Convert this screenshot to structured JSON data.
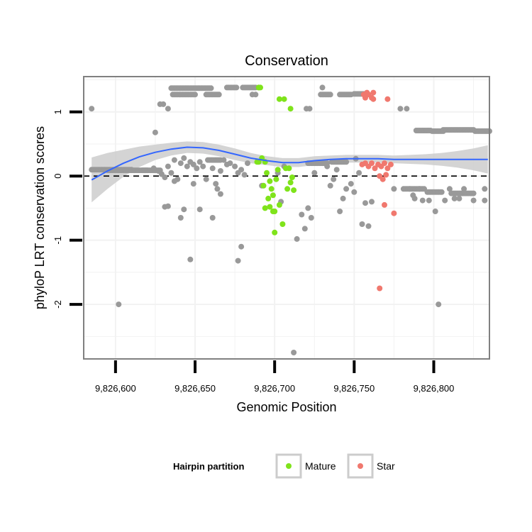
{
  "chart_data": {
    "type": "scatter",
    "title": "Conservation",
    "xlabel": "Genomic Position",
    "ylabel": "phyloP LRT conservation scores",
    "xlim": [
      9826580,
      9826835
    ],
    "ylim": [
      -2.85,
      1.55
    ],
    "x_ticks": [
      {
        "value": 9826600,
        "label": "9,826,600"
      },
      {
        "value": 9826650,
        "label": "9,826,650"
      },
      {
        "value": 9826700,
        "label": "9,826,700"
      },
      {
        "value": 9826750,
        "label": "9,826,750"
      },
      {
        "value": 9826800,
        "label": "9,826,800"
      }
    ],
    "y_ticks": [
      {
        "value": 1,
        "label": "1"
      },
      {
        "value": 0,
        "label": "0"
      },
      {
        "value": -1,
        "label": "-1"
      },
      {
        "value": -2,
        "label": "-2"
      }
    ],
    "grid": true,
    "reference_line": {
      "y": 0,
      "style": "dashed"
    },
    "colors": {
      "other": "#999999",
      "mature": "#7FE31B",
      "star": "#F0786E",
      "smooth": "#3366FF",
      "ribbon": "#CCCCCC",
      "panel_border": "#808080",
      "grid": "#F2F2F2"
    },
    "series": [
      {
        "name": "",
        "category": "other",
        "runs": [
          {
            "x0": 9826585,
            "x1": 9826610,
            "y": 0.1
          },
          {
            "x0": 9826595,
            "x1": 9826620,
            "y": 0.09
          },
          {
            "x0": 9826617,
            "x1": 9826628,
            "y": 0.09
          },
          {
            "x0": 9826636,
            "x1": 9826650,
            "y": 1.27
          },
          {
            "x0": 9826635,
            "x1": 9826660,
            "y": 1.37
          },
          {
            "x0": 9826657,
            "x1": 9826665,
            "y": 1.27
          },
          {
            "x0": 9826670,
            "x1": 9826676,
            "y": 1.38
          },
          {
            "x0": 9826680,
            "x1": 9826688,
            "y": 1.38
          },
          {
            "x0": 9826729,
            "x1": 9826735,
            "y": 1.27
          },
          {
            "x0": 9826741,
            "x1": 9826748,
            "y": 1.27
          },
          {
            "x0": 9826750,
            "x1": 9826757,
            "y": 1.28
          },
          {
            "x0": 9826789,
            "x1": 9826798,
            "y": 0.71
          },
          {
            "x0": 9826799,
            "x1": 9826806,
            "y": 0.7
          },
          {
            "x0": 9826806,
            "x1": 9826825,
            "y": 0.72
          },
          {
            "x0": 9826826,
            "x1": 9826835,
            "y": 0.7
          },
          {
            "x0": 9826658,
            "x1": 9826666,
            "y": 0.25
          },
          {
            "x0": 9826721,
            "x1": 9826733,
            "y": 0.2
          },
          {
            "x0": 9826736,
            "x1": 9826745,
            "y": 0.22
          },
          {
            "x0": 9826781,
            "x1": 9826794,
            "y": -0.2
          },
          {
            "x0": 9826796,
            "x1": 9826805,
            "y": -0.25
          },
          {
            "x0": 9826811,
            "x1": 9826825,
            "y": -0.27
          }
        ],
        "points": [
          [
            9826585,
            1.05
          ],
          [
            9826602,
            -2.0
          ],
          [
            9826625,
            0.68
          ],
          [
            9826628,
            1.12
          ],
          [
            9826630,
            1.12
          ],
          [
            9826633,
            1.05
          ],
          [
            9826624,
            0.12
          ],
          [
            9826627,
            0.08
          ],
          [
            9826629,
            0.03
          ],
          [
            9826631,
            -0.02
          ],
          [
            9826633,
            0.15
          ],
          [
            9826635,
            0.05
          ],
          [
            9826637,
            0.25
          ],
          [
            9826639,
            -0.05
          ],
          [
            9826641,
            0.2
          ],
          [
            9826643,
            0.28
          ],
          [
            9826645,
            0.15
          ],
          [
            9826647,
            0.22
          ],
          [
            9826649,
            0.18
          ],
          [
            9826651,
            0.12
          ],
          [
            9826653,
            0.22
          ],
          [
            9826655,
            0.15
          ],
          [
            9826657,
            -0.05
          ],
          [
            9826661,
            0.12
          ],
          [
            9826663,
            -0.12
          ],
          [
            9826666,
            0.08
          ],
          [
            9826668,
            0.25
          ],
          [
            9826670,
            0.18
          ],
          [
            9826672,
            0.2
          ],
          [
            9826675,
            0.15
          ],
          [
            9826677,
            0.05
          ],
          [
            9826679,
            0.1
          ],
          [
            9826681,
            0.02
          ],
          [
            9826683,
            0.2
          ],
          [
            9826631,
            -0.48
          ],
          [
            9826633,
            -0.47
          ],
          [
            9826637,
            -0.08
          ],
          [
            9826641,
            -0.65
          ],
          [
            9826643,
            -0.52
          ],
          [
            9826647,
            -1.3
          ],
          [
            9826649,
            -0.12
          ],
          [
            9826653,
            -0.52
          ],
          [
            9826661,
            -0.65
          ],
          [
            9826664,
            -0.2
          ],
          [
            9826666,
            -0.28
          ],
          [
            9826677,
            -1.32
          ],
          [
            9826679,
            -1.1
          ],
          [
            9826692,
            -0.15
          ],
          [
            9826690,
            1.38
          ],
          [
            9826686,
            1.27
          ],
          [
            9826688,
            1.27
          ],
          [
            9826706,
            0.15
          ],
          [
            9826702,
            0.05
          ],
          [
            9826704,
            -0.4
          ],
          [
            9826712,
            -2.75
          ],
          [
            9826714,
            -0.98
          ],
          [
            9826717,
            -0.6
          ],
          [
            9826719,
            -0.82
          ],
          [
            9826721,
            -0.5
          ],
          [
            9826723,
            -0.65
          ],
          [
            9826720,
            1.05
          ],
          [
            9826722,
            1.05
          ],
          [
            9826725,
            0.05
          ],
          [
            9826730,
            1.38
          ],
          [
            9826733,
            0.15
          ],
          [
            9826735,
            -0.15
          ],
          [
            9826737,
            -0.05
          ],
          [
            9826739,
            0.1
          ],
          [
            9826741,
            -0.55
          ],
          [
            9826743,
            -0.35
          ],
          [
            9826745,
            -0.2
          ],
          [
            9826748,
            -0.12
          ],
          [
            9826750,
            -0.25
          ],
          [
            9826751,
            0.27
          ],
          [
            9826753,
            0.05
          ],
          [
            9826755,
            -0.75
          ],
          [
            9826757,
            -0.42
          ],
          [
            9826759,
            -0.78
          ],
          [
            9826761,
            -0.4
          ],
          [
            9826775,
            -0.2
          ],
          [
            9826779,
            1.05
          ],
          [
            9826783,
            1.05
          ],
          [
            9826785,
            -0.2
          ],
          [
            9826787,
            -0.3
          ],
          [
            9826788,
            -0.35
          ],
          [
            9826791,
            -0.2
          ],
          [
            9826793,
            -0.38
          ],
          [
            9826797,
            -0.38
          ],
          [
            9826801,
            -0.55
          ],
          [
            9826803,
            -2.0
          ],
          [
            9826807,
            -0.38
          ],
          [
            9826810,
            -0.2
          ],
          [
            9826813,
            -0.35
          ],
          [
            9826816,
            -0.35
          ],
          [
            9826819,
            -0.2
          ],
          [
            9826825,
            -0.38
          ],
          [
            9826832,
            -0.2
          ],
          [
            9826832,
            -0.38
          ]
        ]
      },
      {
        "name": "Mature",
        "category": "mature",
        "points": [
          [
            9826690,
            0.22
          ],
          [
            9826692,
            0.28
          ],
          [
            9826694,
            0.22
          ],
          [
            9826689,
            0.22
          ],
          [
            9826690,
            1.38
          ],
          [
            9826691,
            1.38
          ],
          [
            9826703,
            1.2
          ],
          [
            9826706,
            1.2
          ],
          [
            9826710,
            1.05
          ],
          [
            9826695,
            0.05
          ],
          [
            9826697,
            -0.08
          ],
          [
            9826701,
            -0.05
          ],
          [
            9826693,
            -0.15
          ],
          [
            9826698,
            -0.2
          ],
          [
            9826699,
            -0.3
          ],
          [
            9826696,
            -0.35
          ],
          [
            9826694,
            -0.5
          ],
          [
            9826697,
            -0.48
          ],
          [
            9826699,
            -0.55
          ],
          [
            9826700,
            -0.55
          ],
          [
            9826703,
            -0.45
          ],
          [
            9826705,
            -0.75
          ],
          [
            9826700,
            -0.88
          ],
          [
            9826707,
            0.12
          ],
          [
            9826709,
            0.12
          ],
          [
            9826711,
            -0.02
          ],
          [
            9826710,
            -0.1
          ],
          [
            9826708,
            -0.2
          ],
          [
            9826712,
            -0.22
          ],
          [
            9826702,
            0.1
          ]
        ]
      },
      {
        "name": "Star",
        "category": "star",
        "points": [
          [
            9826756,
            1.27
          ],
          [
            9826758,
            1.3
          ],
          [
            9826759,
            1.27
          ],
          [
            9826761,
            1.22
          ],
          [
            9826762,
            1.3
          ],
          [
            9826757,
            1.22
          ],
          [
            9826762,
            1.2
          ],
          [
            9826771,
            1.2
          ],
          [
            9826755,
            0.18
          ],
          [
            9826757,
            0.2
          ],
          [
            9826759,
            0.15
          ],
          [
            9826761,
            0.2
          ],
          [
            9826763,
            0.12
          ],
          [
            9826765,
            0.18
          ],
          [
            9826767,
            0.15
          ],
          [
            9826769,
            0.2
          ],
          [
            9826771,
            0.12
          ],
          [
            9826773,
            0.18
          ],
          [
            9826766,
            0.0
          ],
          [
            9826768,
            -0.05
          ],
          [
            9826770,
            0.02
          ],
          [
            9826769,
            -0.45
          ],
          [
            9826775,
            -0.58
          ],
          [
            9826766,
            -1.75
          ]
        ]
      }
    ],
    "smooth": {
      "label": "",
      "x": [
        9826585,
        9826595,
        9826605,
        9826615,
        9826625,
        9826635,
        9826645,
        9826655,
        9826665,
        9826675,
        9826685,
        9826695,
        9826705,
        9826715,
        9826725,
        9826735,
        9826745,
        9826755,
        9826765,
        9826775,
        9826785,
        9826795,
        9826805,
        9826815,
        9826825,
        9826834
      ],
      "y": [
        -0.06,
        0.08,
        0.2,
        0.3,
        0.37,
        0.42,
        0.45,
        0.44,
        0.4,
        0.34,
        0.28,
        0.24,
        0.21,
        0.21,
        0.24,
        0.26,
        0.27,
        0.27,
        0.27,
        0.26,
        0.26,
        0.26,
        0.26,
        0.26,
        0.26,
        0.26
      ],
      "se_halfwidth": [
        0.35,
        0.28,
        0.21,
        0.16,
        0.12,
        0.1,
        0.09,
        0.09,
        0.09,
        0.09,
        0.08,
        0.07,
        0.07,
        0.07,
        0.07,
        0.06,
        0.06,
        0.06,
        0.06,
        0.06,
        0.07,
        0.08,
        0.1,
        0.13,
        0.17,
        0.22
      ]
    },
    "legend": {
      "title": "Hairpin partition",
      "position": "bottom",
      "entries": [
        {
          "label": "Mature",
          "category": "mature"
        },
        {
          "label": "Star",
          "category": "star"
        }
      ]
    }
  }
}
